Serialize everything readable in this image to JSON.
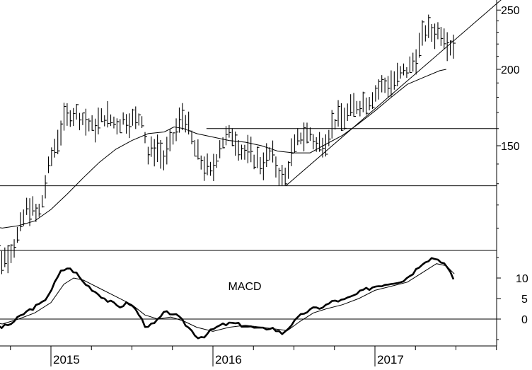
{
  "chart_data": [
    {
      "type": "ohlc",
      "ylim": [
        80,
        260
      ],
      "yscale": "log",
      "x_range": [
        2014.6,
        2017.78
      ],
      "yticks": [
        {
          "value": 150,
          "label": "150"
        },
        {
          "value": 200,
          "label": "200"
        },
        {
          "value": 250,
          "label": "250"
        }
      ],
      "xticks": [
        {
          "value": 2015.0,
          "label": "2015"
        },
        {
          "value": 2016.0,
          "label": "2016"
        },
        {
          "value": 2017.0,
          "label": "2017"
        }
      ],
      "grid": false,
      "series": [
        {
          "kind": "weekly-bars",
          "knots": [
            [
              2014.6,
              110
            ],
            [
              2014.66,
              106
            ],
            [
              2014.7,
              97
            ],
            [
              2014.78,
              104
            ],
            [
              2014.82,
              112
            ],
            [
              2014.86,
              120
            ],
            [
              2014.92,
              115
            ],
            [
              2014.95,
              123
            ],
            [
              2015.0,
              143
            ],
            [
              2015.08,
              164
            ],
            [
              2015.12,
              170
            ],
            [
              2015.18,
              168
            ],
            [
              2015.26,
              160
            ],
            [
              2015.33,
              168
            ],
            [
              2015.4,
              163
            ],
            [
              2015.46,
              166
            ],
            [
              2015.52,
              165
            ],
            [
              2015.56,
              168
            ],
            [
              2015.6,
              145
            ],
            [
              2015.65,
              150
            ],
            [
              2015.7,
              142
            ],
            [
              2015.76,
              156
            ],
            [
              2015.82,
              170
            ],
            [
              2015.88,
              150
            ],
            [
              2015.93,
              141
            ],
            [
              2015.99,
              135
            ],
            [
              2016.05,
              152
            ],
            [
              2016.12,
              157
            ],
            [
              2016.18,
              147
            ],
            [
              2016.24,
              145
            ],
            [
              2016.3,
              140
            ],
            [
              2016.36,
              146
            ],
            [
              2016.4,
              137
            ],
            [
              2016.44,
              131
            ],
            [
              2016.48,
              144
            ],
            [
              2016.54,
              156
            ],
            [
              2016.6,
              157
            ],
            [
              2016.64,
              150
            ],
            [
              2016.7,
              154
            ],
            [
              2016.75,
              165
            ],
            [
              2016.82,
              168
            ],
            [
              2016.88,
              175
            ],
            [
              2016.96,
              178
            ],
            [
              2017.04,
              188
            ],
            [
              2017.1,
              190
            ],
            [
              2017.16,
              196
            ],
            [
              2017.22,
              202
            ],
            [
              2017.26,
              212
            ],
            [
              2017.31,
              232
            ],
            [
              2017.36,
              230
            ],
            [
              2017.42,
              231
            ],
            [
              2017.46,
              219
            ],
            [
              2017.49,
              221
            ]
          ],
          "range": [
            2014.6,
            2017.49
          ]
        },
        {
          "kind": "moving-average",
          "points": [
            [
              2014.6,
              111
            ],
            [
              2014.7,
              110
            ],
            [
              2014.8,
              111
            ],
            [
              2014.9,
              113
            ],
            [
              2015.0,
              118
            ],
            [
              2015.1,
              125
            ],
            [
              2015.2,
              133
            ],
            [
              2015.3,
              141
            ],
            [
              2015.4,
              148
            ],
            [
              2015.5,
              153
            ],
            [
              2015.6,
              157
            ],
            [
              2015.7,
              158
            ],
            [
              2015.76,
              161
            ],
            [
              2015.82,
              160
            ],
            [
              2015.9,
              157
            ],
            [
              2016.0,
              155
            ],
            [
              2016.1,
              153
            ],
            [
              2016.2,
              152
            ],
            [
              2016.3,
              150
            ],
            [
              2016.4,
              147
            ],
            [
              2016.5,
              146
            ],
            [
              2016.6,
              146
            ],
            [
              2016.7,
              151
            ],
            [
              2016.8,
              156
            ],
            [
              2016.9,
              163
            ],
            [
              2017.0,
              171
            ],
            [
              2017.1,
              180
            ],
            [
              2017.2,
              189
            ],
            [
              2017.3,
              194
            ],
            [
              2017.4,
              199
            ],
            [
              2017.44,
              200
            ]
          ]
        }
      ],
      "annotations": [
        {
          "kind": "horizontal-line",
          "y": 129,
          "x_range": [
            2014.6,
            2017.78
          ]
        },
        {
          "kind": "horizontal-line",
          "y": 160,
          "x_range": [
            2015.96,
            2017.78
          ]
        },
        {
          "kind": "trend-line",
          "points": [
            [
              2016.45,
              129
            ],
            [
              2017.78,
              260
            ]
          ]
        }
      ]
    },
    {
      "type": "line",
      "title": "MACD",
      "ylim": [
        -8,
        22
      ],
      "x_range": [
        2014.6,
        2017.78
      ],
      "yticks": [
        {
          "value": 0,
          "label": "0"
        },
        {
          "value": 5,
          "label": "5"
        },
        {
          "value": 10,
          "label": "10"
        }
      ],
      "xticks": [
        {
          "value": 2015.0,
          "label": "2015"
        },
        {
          "value": 2016.0,
          "label": "2016"
        },
        {
          "value": 2017.0,
          "label": "2017"
        }
      ],
      "zero_line": true,
      "series": [
        {
          "kind": "macd",
          "points": [
            [
              2014.6,
              -1
            ],
            [
              2014.65,
              -1.5
            ],
            [
              2014.7,
              -2
            ],
            [
              2014.76,
              -1
            ],
            [
              2014.82,
              1
            ],
            [
              2014.88,
              2.5
            ],
            [
              2014.95,
              4
            ],
            [
              2015.0,
              7
            ],
            [
              2015.06,
              11.5
            ],
            [
              2015.1,
              12.5
            ],
            [
              2015.15,
              11.5
            ],
            [
              2015.2,
              9
            ],
            [
              2015.28,
              6.5
            ],
            [
              2015.35,
              4.5
            ],
            [
              2015.42,
              3
            ],
            [
              2015.48,
              4
            ],
            [
              2015.53,
              2
            ],
            [
              2015.58,
              -1.5
            ],
            [
              2015.63,
              -1.5
            ],
            [
              2015.7,
              1.5
            ],
            [
              2015.75,
              1.5
            ],
            [
              2015.8,
              0
            ],
            [
              2015.86,
              -2.5
            ],
            [
              2015.91,
              -4.5
            ],
            [
              2015.95,
              -4
            ],
            [
              2016.0,
              -2.5
            ],
            [
              2016.05,
              -1.5
            ],
            [
              2016.12,
              -1
            ],
            [
              2016.18,
              -1.5
            ],
            [
              2016.24,
              -2
            ],
            [
              2016.3,
              -2.5
            ],
            [
              2016.36,
              -2
            ],
            [
              2016.4,
              -3
            ],
            [
              2016.43,
              -3.5
            ],
            [
              2016.48,
              -1.5
            ],
            [
              2016.52,
              0
            ],
            [
              2016.56,
              1.5
            ],
            [
              2016.62,
              2.5
            ],
            [
              2016.68,
              3
            ],
            [
              2016.75,
              4.5
            ],
            [
              2016.8,
              4.5
            ],
            [
              2016.86,
              5.5
            ],
            [
              2016.93,
              7
            ],
            [
              2017.0,
              8
            ],
            [
              2017.06,
              8.5
            ],
            [
              2017.12,
              9
            ],
            [
              2017.18,
              9.5
            ],
            [
              2017.24,
              11.5
            ],
            [
              2017.3,
              14
            ],
            [
              2017.36,
              15
            ],
            [
              2017.42,
              14
            ],
            [
              2017.46,
              11.5
            ],
            [
              2017.49,
              9.5
            ]
          ]
        },
        {
          "kind": "signal",
          "points": [
            [
              2014.6,
              -0.5
            ],
            [
              2014.7,
              -1.2
            ],
            [
              2014.8,
              0
            ],
            [
              2014.9,
              1.5
            ],
            [
              2015.0,
              4
            ],
            [
              2015.08,
              8.5
            ],
            [
              2015.14,
              10
            ],
            [
              2015.2,
              9.5
            ],
            [
              2015.3,
              7.5
            ],
            [
              2015.4,
              5.5
            ],
            [
              2015.5,
              3.5
            ],
            [
              2015.58,
              1
            ],
            [
              2015.66,
              0
            ],
            [
              2015.74,
              0.5
            ],
            [
              2015.82,
              -0.5
            ],
            [
              2015.9,
              -2
            ],
            [
              2016.0,
              -3
            ],
            [
              2016.1,
              -2
            ],
            [
              2016.2,
              -1.5
            ],
            [
              2016.3,
              -2
            ],
            [
              2016.4,
              -2.5
            ],
            [
              2016.46,
              -2.8
            ],
            [
              2016.54,
              -0.5
            ],
            [
              2016.62,
              1.5
            ],
            [
              2016.7,
              2.5
            ],
            [
              2016.8,
              3.5
            ],
            [
              2016.9,
              5
            ],
            [
              2017.0,
              7
            ],
            [
              2017.1,
              8
            ],
            [
              2017.2,
              9
            ],
            [
              2017.3,
              11.5
            ],
            [
              2017.38,
              13.5
            ],
            [
              2017.44,
              13
            ],
            [
              2017.49,
              11
            ]
          ]
        }
      ]
    }
  ]
}
